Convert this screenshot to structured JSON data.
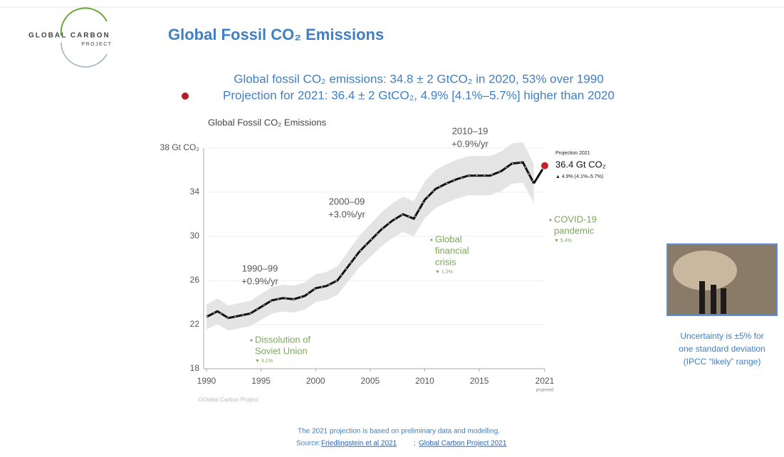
{
  "header": {
    "logo_line1": "GLOBAL CARBON",
    "logo_line2": "PROJECT",
    "title": "Global Fossil CO₂ Emissions"
  },
  "subtitle": [
    "Global fossil CO₂ emissions: 34.8 ± 2 GtCO₂ in 2020, 53% over 1990",
    "Projection for 2021: 36.4 ± 2 GtCO₂, 4.9% [4.1%–5.7%] higher than 2020"
  ],
  "chart_data": {
    "type": "line",
    "title": "Global Fossil CO₂ Emissions",
    "x": [
      1990,
      1991,
      1992,
      1993,
      1994,
      1995,
      1996,
      1997,
      1998,
      1999,
      2000,
      2001,
      2002,
      2003,
      2004,
      2005,
      2006,
      2007,
      2008,
      2009,
      2010,
      2011,
      2012,
      2013,
      2014,
      2015,
      2016,
      2017,
      2018,
      2019,
      2020
    ],
    "series": [
      {
        "name": "Global Fossil CO₂ Emissions",
        "color": "#111111",
        "values": [
          22.7,
          23.2,
          22.6,
          22.8,
          23.0,
          23.6,
          24.2,
          24.4,
          24.3,
          24.6,
          25.3,
          25.5,
          26.0,
          27.3,
          28.6,
          29.6,
          30.6,
          31.4,
          32.0,
          31.6,
          33.3,
          34.3,
          34.8,
          35.2,
          35.5,
          35.5,
          35.5,
          35.9,
          36.6,
          36.7,
          34.8
        ]
      }
    ],
    "uncertainty_pct": 5,
    "band_color": "#e4e4e4",
    "projection": {
      "x": 2021,
      "value": 36.4,
      "color": "#c0242c",
      "label": "Projection 2021",
      "value_label": "36.4 Gt CO₂",
      "change_label": "▲ 4.9% (4.1%–5.7%)"
    },
    "xlim": [
      1990,
      2021
    ],
    "xticks": [
      1990,
      1995,
      2000,
      2005,
      2010,
      2015,
      2021
    ],
    "x_last_tick_note": "projected",
    "ylim": [
      18,
      38
    ],
    "yticks": [
      18,
      22,
      26,
      30,
      34,
      {
        "value": 38,
        "label": "38 Gt CO₂"
      }
    ],
    "grid": true,
    "annotations": [
      {
        "lines": [
          "1990–99",
          "+0.9%/yr"
        ],
        "style": "rate"
      },
      {
        "lines": [
          "2000–09",
          "+3.0%/yr"
        ],
        "style": "rate"
      },
      {
        "lines": [
          "2010–19",
          "+0.9%/yr"
        ],
        "style": "rate"
      },
      {
        "lines": [
          "Dissolution of",
          "Soviet Union",
          "▼ 3.1%"
        ],
        "style": "event"
      },
      {
        "lines": [
          "Global",
          "financial",
          "crisis",
          "▼ 1.2%"
        ],
        "style": "event"
      },
      {
        "lines": [
          "COVID-19",
          "pandemic",
          "▼ 5.4%"
        ],
        "style": "event"
      }
    ],
    "credit": "©Global Carbon Project"
  },
  "side_note": [
    "Uncertainty is ±5% for",
    "one standard deviation",
    "(IPCC “likely” range)"
  ],
  "footer": {
    "line1": "The 2021 projection is based on preliminary data and modelling.",
    "source_prefix": "Source:",
    "link1": "Friedlingstein et al 2021",
    "separator": ";",
    "link2": "Global Carbon Project 2021"
  }
}
